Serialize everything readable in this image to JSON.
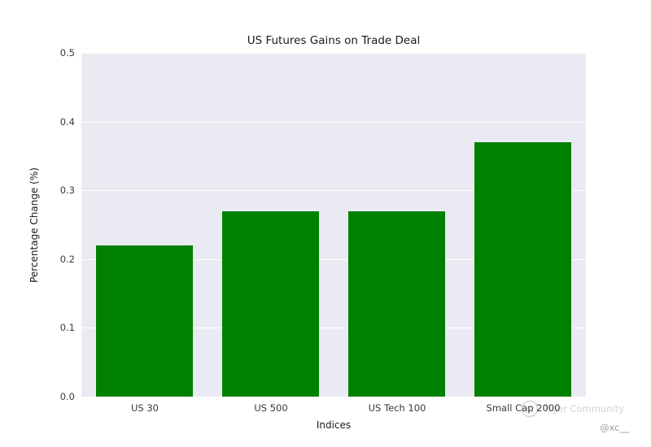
{
  "chart_data": {
    "type": "bar",
    "title": "US Futures Gains on Trade Deal",
    "categories": [
      "US 30",
      "US 500",
      "US Tech 100",
      "Small Cap 2000"
    ],
    "values": [
      0.22,
      0.27,
      0.27,
      0.37
    ],
    "xlabel": "Indices",
    "ylabel": "Percentage Change (%)",
    "ylim": [
      0.0,
      0.5
    ],
    "yticks": [
      0.0,
      0.1,
      0.2,
      0.3,
      0.4,
      0.5
    ],
    "ytick_decimals": 1,
    "bar_color": "#008000",
    "plot_bg": "#eaeaf2",
    "grid_color": "#ffffff",
    "grid": "horizontal",
    "legend": "none"
  },
  "watermark": {
    "community": "Tiger Community",
    "handle": "@xc__",
    "logo_color": "#d6d6d6"
  }
}
